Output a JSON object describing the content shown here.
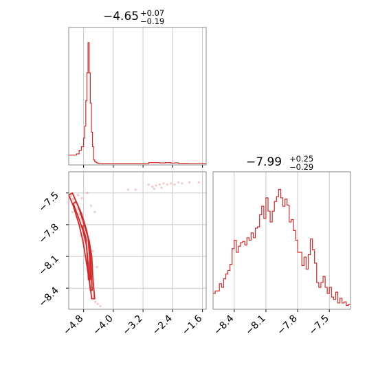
{
  "chart_data": [
    {
      "type": "histogram",
      "panel": "marginal-x",
      "title": {
        "value": "−4.65",
        "plus": "+0.07",
        "minus": "−0.19"
      },
      "xlim": [
        -5.2,
        -1.5
      ],
      "xticks": [
        -4.8,
        -4.0,
        -3.2,
        -2.4,
        -1.6
      ],
      "grid": true,
      "color": "#d62728",
      "bins": {
        "x": [
          -5.2,
          -4.99,
          -4.92,
          -4.86,
          -4.8,
          -4.77,
          -4.74,
          -4.71,
          -4.68,
          -4.65,
          -4.62,
          -4.59,
          -4.56,
          -4.53,
          -4.5,
          -4.47,
          -4.44,
          -4.41,
          -4.38,
          -4.3,
          -3.05,
          -2.75,
          -2.6,
          -2.45,
          -2.35,
          -2.25,
          -2.0,
          -1.5
        ],
        "h": [
          0.07,
          0.08,
          0.11,
          0.14,
          0.21,
          0.31,
          0.52,
          0.75,
          1.0,
          0.75,
          0.5,
          0.26,
          0.14,
          0.03,
          0.015,
          0.01,
          0.005,
          0.002,
          0.001,
          0,
          0.008,
          0.005,
          0.008,
          0.004,
          0.006,
          0.002,
          0.001
        ]
      }
    },
    {
      "type": "scatter-contour",
      "panel": "joint",
      "xlim": [
        -5.2,
        -1.5
      ],
      "ylim": [
        -8.6,
        -7.3
      ],
      "xticks": [
        -4.8,
        -4.0,
        -3.2,
        -2.4,
        -1.6
      ],
      "yticks": [
        -7.5,
        -7.8,
        -8.1,
        -8.4
      ],
      "grid": true,
      "color": "#d62728",
      "contour_levels": [
        [
          [
            -5.1,
            -7.5
          ],
          [
            -4.95,
            -7.62
          ],
          [
            -4.78,
            -7.8
          ],
          [
            -4.65,
            -7.95
          ],
          [
            -4.58,
            -8.1
          ],
          [
            -4.55,
            -8.3
          ],
          [
            -4.5,
            -8.5
          ],
          [
            -4.58,
            -8.5
          ],
          [
            -4.66,
            -8.3
          ],
          [
            -4.75,
            -8.1
          ],
          [
            -4.82,
            -7.95
          ],
          [
            -4.92,
            -7.8
          ],
          [
            -5.08,
            -7.62
          ],
          [
            -5.2,
            -7.52
          ]
        ],
        [
          [
            -5.0,
            -7.58
          ],
          [
            -4.85,
            -7.7
          ],
          [
            -4.72,
            -7.85
          ],
          [
            -4.63,
            -8.0
          ],
          [
            -4.6,
            -8.2
          ],
          [
            -4.57,
            -8.42
          ],
          [
            -4.62,
            -8.42
          ],
          [
            -4.67,
            -8.2
          ],
          [
            -4.72,
            -8.0
          ],
          [
            -4.82,
            -7.85
          ],
          [
            -4.95,
            -7.72
          ],
          [
            -5.08,
            -7.6
          ]
        ],
        [
          [
            -4.78,
            -7.8
          ],
          [
            -4.68,
            -7.92
          ],
          [
            -4.64,
            -8.1
          ],
          [
            -4.62,
            -8.32
          ],
          [
            -4.67,
            -8.32
          ],
          [
            -4.7,
            -8.1
          ],
          [
            -4.74,
            -7.92
          ],
          [
            -4.83,
            -7.82
          ]
        ]
      ],
      "scatter": [
        [
          -5.15,
          -7.53
        ],
        [
          -5.08,
          -7.56
        ],
        [
          -5.0,
          -7.6
        ],
        [
          -4.94,
          -7.65
        ],
        [
          -4.9,
          -7.7
        ],
        [
          -4.86,
          -7.74
        ],
        [
          -4.82,
          -7.78
        ],
        [
          -4.78,
          -7.82
        ],
        [
          -4.74,
          -7.88
        ],
        [
          -4.7,
          -7.95
        ],
        [
          -4.66,
          -8.02
        ],
        [
          -4.62,
          -8.15
        ],
        [
          -4.6,
          -8.28
        ],
        [
          -4.56,
          -8.4
        ],
        [
          -4.52,
          -8.48
        ],
        [
          -4.48,
          -8.53
        ],
        [
          -4.42,
          -8.55
        ],
        [
          -4.35,
          -8.57
        ],
        [
          -4.95,
          -7.52
        ],
        [
          -4.85,
          -7.55
        ],
        [
          -4.7,
          -7.5
        ],
        [
          -4.6,
          -7.62
        ],
        [
          -4.5,
          -7.68
        ],
        [
          -5.1,
          -7.68
        ],
        [
          -4.88,
          -7.9
        ],
        [
          -4.55,
          -8.05
        ],
        [
          -4.44,
          -8.2
        ],
        [
          -3.05,
          -7.42
        ],
        [
          -2.95,
          -7.44
        ],
        [
          -2.85,
          -7.43
        ],
        [
          -2.75,
          -7.42
        ],
        [
          -2.65,
          -7.41
        ],
        [
          -2.55,
          -7.42
        ],
        [
          -2.45,
          -7.41
        ],
        [
          -2.35,
          -7.42
        ],
        [
          -2.25,
          -7.4
        ],
        [
          -2.15,
          -7.41
        ],
        [
          -1.95,
          -7.4
        ],
        [
          -1.7,
          -7.4
        ],
        [
          -3.6,
          -7.47
        ],
        [
          -3.4,
          -7.47
        ],
        [
          -2.9,
          -7.46
        ],
        [
          -2.7,
          -7.45
        ]
      ]
    },
    {
      "type": "histogram",
      "panel": "marginal-y",
      "title": {
        "value": "−7.99",
        "plus": "+0.25",
        "minus": "−0.29"
      },
      "xlim": [
        -8.6,
        -7.3
      ],
      "xticks": [
        -8.4,
        -8.1,
        -7.8,
        -7.5
      ],
      "grid": true,
      "color": "#d62728",
      "bins": {
        "x": [
          -8.6,
          -8.58,
          -8.54,
          -8.52,
          -8.5,
          -8.48,
          -8.46,
          -8.44,
          -8.42,
          -8.4,
          -8.38,
          -8.36,
          -8.34,
          -8.32,
          -8.3,
          -8.28,
          -8.26,
          -8.24,
          -8.22,
          -8.2,
          -8.18,
          -8.16,
          -8.14,
          -8.12,
          -8.1,
          -8.08,
          -8.06,
          -8.04,
          -8.02,
          -8.0,
          -7.98,
          -7.96,
          -7.94,
          -7.92,
          -7.9,
          -7.88,
          -7.86,
          -7.84,
          -7.82,
          -7.8,
          -7.78,
          -7.76,
          -7.74,
          -7.72,
          -7.7,
          -7.68,
          -7.66,
          -7.64,
          -7.62,
          -7.6,
          -7.58,
          -7.56,
          -7.54,
          -7.52,
          -7.5,
          -7.48,
          -7.46,
          -7.44,
          -7.42,
          -7.4,
          -7.38,
          -7.36,
          -7.34,
          -7.32,
          -7.3
        ],
        "h": [
          0.12,
          0.14,
          0.2,
          0.17,
          0.24,
          0.28,
          0.31,
          0.36,
          0.49,
          0.56,
          0.46,
          0.51,
          0.54,
          0.55,
          0.52,
          0.58,
          0.56,
          0.62,
          0.58,
          0.66,
          0.67,
          0.77,
          0.84,
          0.74,
          0.91,
          0.8,
          0.71,
          0.8,
          0.88,
          0.92,
          0.98,
          0.91,
          0.84,
          0.9,
          0.85,
          0.71,
          0.73,
          0.64,
          0.56,
          0.46,
          0.46,
          0.35,
          0.42,
          0.32,
          0.44,
          0.57,
          0.48,
          0.37,
          0.21,
          0.17,
          0.21,
          0.26,
          0.17,
          0.12,
          0.17,
          0.09,
          0.07,
          0.13,
          0.04,
          0.08,
          0.04,
          0.05,
          0.02,
          0.03
        ]
      }
    }
  ]
}
